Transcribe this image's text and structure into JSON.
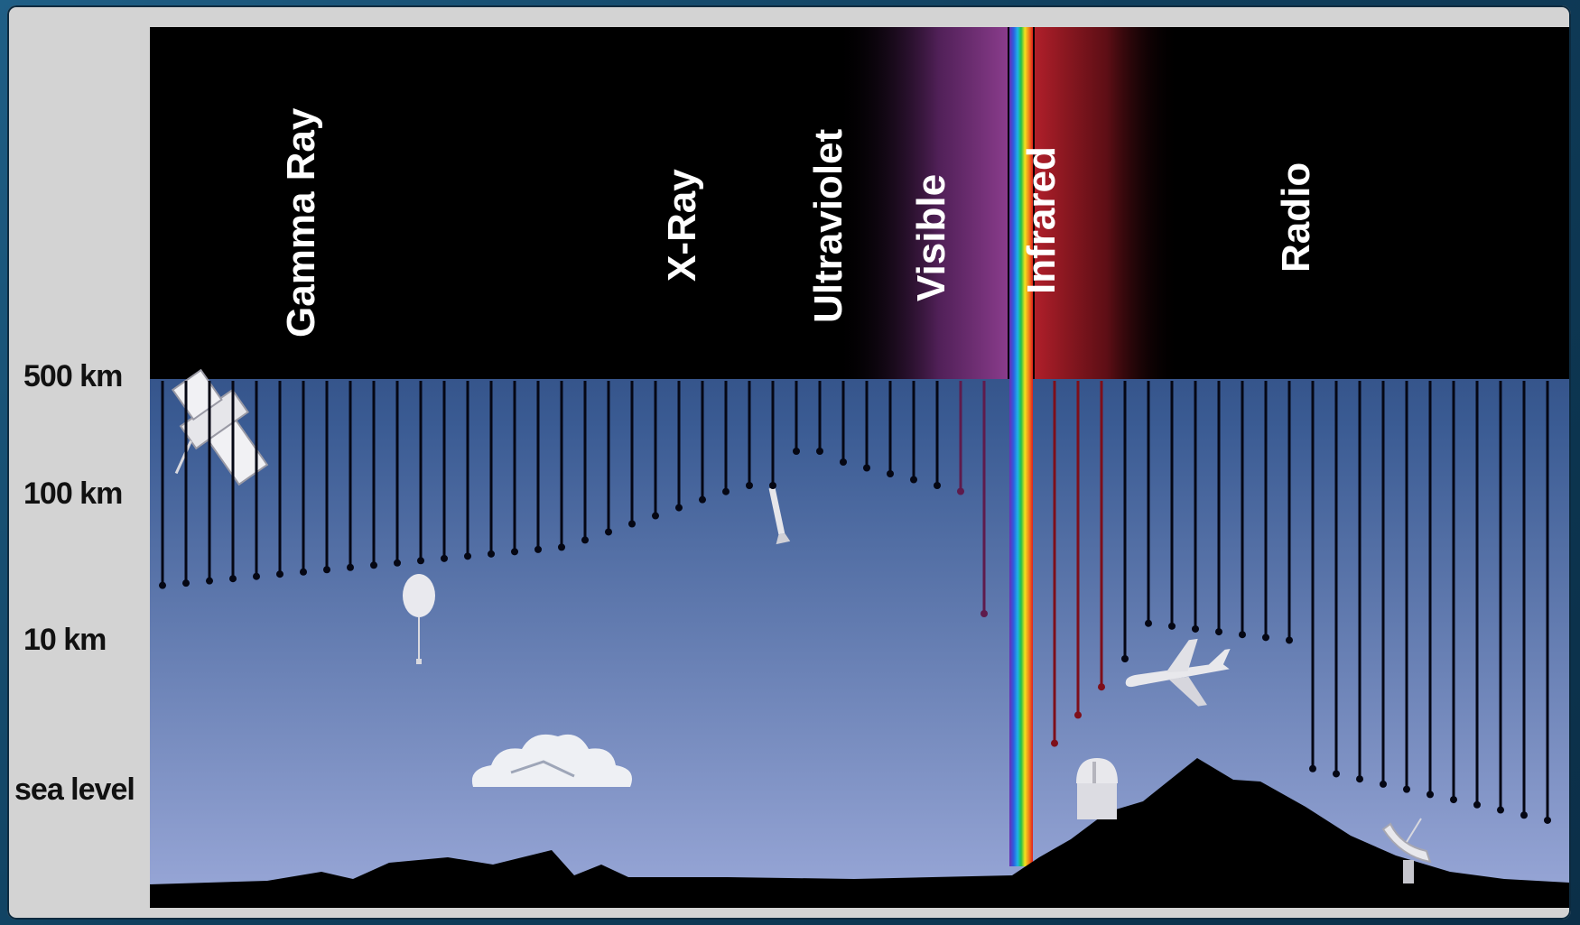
{
  "bands": [
    {
      "id": "gamma",
      "label": "Gamma Ray"
    },
    {
      "id": "xray",
      "label": "X-Ray"
    },
    {
      "id": "uv",
      "label": "Ultraviolet"
    },
    {
      "id": "visible",
      "label": "Visible"
    },
    {
      "id": "ir",
      "label": "Infrared"
    },
    {
      "id": "radio",
      "label": "Radio"
    }
  ],
  "altitudes": [
    {
      "id": "500",
      "label": "500 km"
    },
    {
      "id": "100",
      "label": "100 km"
    },
    {
      "id": "10",
      "label": "10 km"
    },
    {
      "id": "sea",
      "label": "sea level"
    }
  ],
  "colors": {
    "sky_top": "#14244d",
    "sky_bottom": "#9aa8d8",
    "uv_glow": "#7a2d7e",
    "ir_glow": "#8f1a22",
    "frame": "#d3d3d3",
    "ground": "#000000"
  },
  "icons": [
    "satellite-icon",
    "balloon-icon",
    "rocket-icon",
    "airplane-icon",
    "cloud-icon",
    "observatory-icon",
    "radio-dish-icon",
    "mountains-icon"
  ]
}
